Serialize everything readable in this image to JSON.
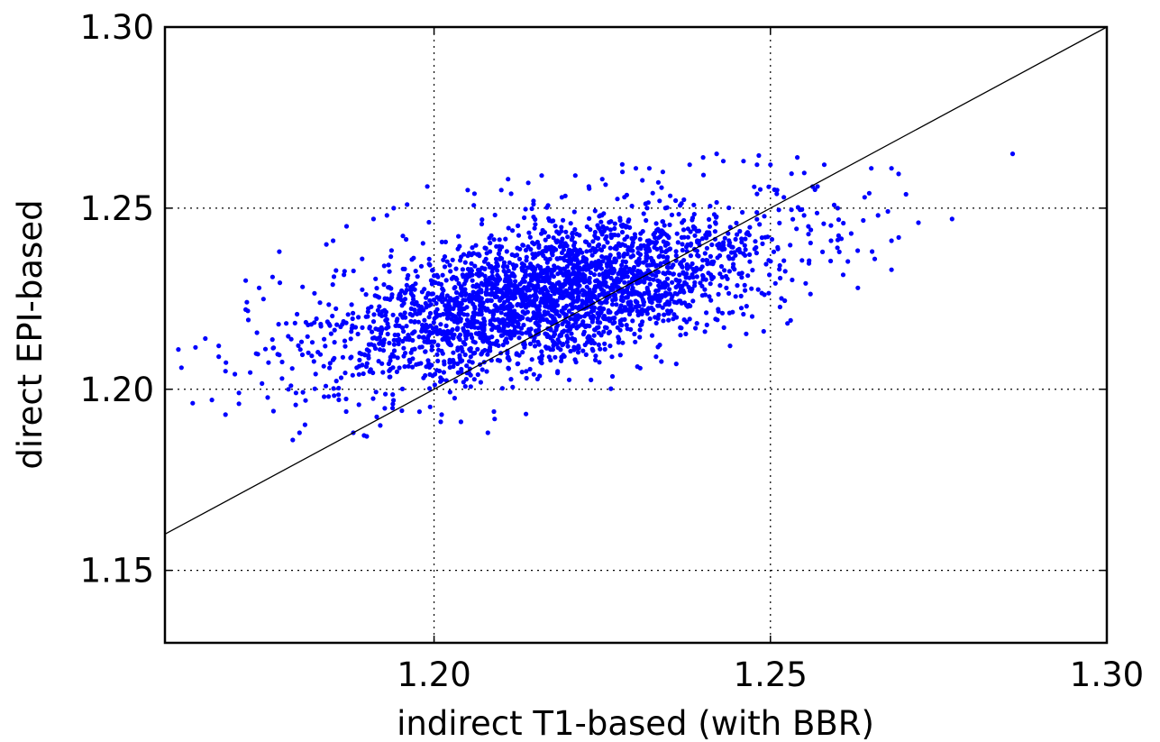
{
  "chart_data": {
    "type": "scatter",
    "xlabel": "indirect T1-based (with BBR)",
    "ylabel": "direct EPI-based",
    "xlim": [
      1.16,
      1.3
    ],
    "ylim": [
      1.13,
      1.3
    ],
    "xticks": [
      "1.20",
      "1.25",
      "1.30"
    ],
    "xtick_values": [
      1.2,
      1.25,
      1.3
    ],
    "yticks": [
      "1.15",
      "1.20",
      "1.25",
      "1.30"
    ],
    "ytick_values": [
      1.15,
      1.2,
      1.25,
      1.3
    ],
    "grid": true,
    "grid_style": "dotted",
    "marker_color": "#0000ff",
    "reference_line": {
      "type": "identity",
      "color": "#000000",
      "x": [
        1.16,
        1.3
      ],
      "y": [
        1.16,
        1.3
      ]
    },
    "point_cloud": {
      "count": 2800,
      "center": [
        1.217,
        1.226
      ],
      "sd": [
        0.0165,
        0.0115
      ],
      "correlation": 0.55
    },
    "points": [
      [
        1.162,
        1.211
      ],
      [
        1.166,
        1.214
      ],
      [
        1.168,
        1.212
      ],
      [
        1.168,
        1.209
      ],
      [
        1.169,
        1.205
      ],
      [
        1.169,
        1.193
      ],
      [
        1.171,
        1.199
      ],
      [
        1.171,
        1.196
      ],
      [
        1.172,
        1.222
      ],
      [
        1.172,
        1.23
      ],
      [
        1.174,
        1.228
      ],
      [
        1.176,
        1.231
      ],
      [
        1.177,
        1.238
      ],
      [
        1.179,
        1.186
      ],
      [
        1.18,
        1.188
      ],
      [
        1.184,
        1.24
      ],
      [
        1.185,
        1.241
      ],
      [
        1.187,
        1.245
      ],
      [
        1.188,
        1.188
      ],
      [
        1.19,
        1.187
      ],
      [
        1.191,
        1.247
      ],
      [
        1.192,
        1.19
      ],
      [
        1.193,
        1.248
      ],
      [
        1.194,
        1.25
      ],
      [
        1.196,
        1.251
      ],
      [
        1.199,
        1.256
      ],
      [
        1.201,
        1.191
      ],
      [
        1.204,
        1.191
      ],
      [
        1.205,
        1.255
      ],
      [
        1.206,
        1.254
      ],
      [
        1.208,
        1.188
      ],
      [
        1.21,
        1.255
      ],
      [
        1.211,
        1.258
      ],
      [
        1.214,
        1.257
      ],
      [
        1.216,
        1.259
      ],
      [
        1.219,
        1.253
      ],
      [
        1.221,
        1.259
      ],
      [
        1.223,
        1.256
      ],
      [
        1.225,
        1.258
      ],
      [
        1.228,
        1.26
      ],
      [
        1.23,
        1.261
      ],
      [
        1.232,
        1.261
      ],
      [
        1.233,
        1.209
      ],
      [
        1.234,
        1.26
      ],
      [
        1.236,
        1.207
      ],
      [
        1.238,
        1.262
      ],
      [
        1.24,
        1.264
      ],
      [
        1.242,
        1.265
      ],
      [
        1.243,
        1.263
      ],
      [
        1.244,
        1.212
      ],
      [
        1.246,
        1.263
      ],
      [
        1.248,
        1.262
      ],
      [
        1.249,
        1.216
      ],
      [
        1.25,
        1.262
      ],
      [
        1.251,
        1.255
      ],
      [
        1.252,
        1.253
      ],
      [
        1.253,
        1.219
      ],
      [
        1.254,
        1.264
      ],
      [
        1.255,
        1.248
      ],
      [
        1.256,
        1.244
      ],
      [
        1.257,
        1.256
      ],
      [
        1.258,
        1.262
      ],
      [
        1.259,
        1.241
      ],
      [
        1.26,
        1.25
      ],
      [
        1.262,
        1.243
      ],
      [
        1.263,
        1.228
      ],
      [
        1.264,
        1.253
      ],
      [
        1.265,
        1.261
      ],
      [
        1.266,
        1.248
      ],
      [
        1.268,
        1.261
      ],
      [
        1.268,
        1.241
      ],
      [
        1.268,
        1.233
      ],
      [
        1.272,
        1.246
      ],
      [
        1.277,
        1.247
      ],
      [
        1.286,
        1.265
      ]
    ]
  }
}
